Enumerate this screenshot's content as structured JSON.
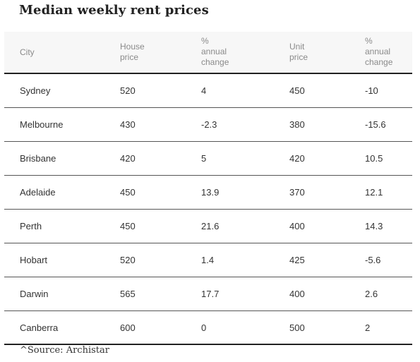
{
  "title": "Median weekly rent prices",
  "source": "^Source: Archistar",
  "headers": {
    "city": [
      "City"
    ],
    "house_price": [
      "House",
      "price"
    ],
    "house_change": [
      "%",
      "annual",
      "change"
    ],
    "unit_price": [
      "Unit",
      "price"
    ],
    "unit_change": [
      "%",
      "annual",
      "change"
    ]
  },
  "chart_data": {
    "type": "table",
    "title": "Median weekly rent prices",
    "columns": [
      "City",
      "House price",
      "% annual change",
      "Unit price",
      "% annual change"
    ],
    "rows": [
      [
        "Sydney",
        "520",
        "4",
        "450",
        "-10"
      ],
      [
        "Melbourne",
        "430",
        "-2.3",
        "380",
        "-15.6"
      ],
      [
        "Brisbane",
        "420",
        "5",
        "420",
        "10.5"
      ],
      [
        "Adelaide",
        "450",
        "13.9",
        "370",
        "12.1"
      ],
      [
        "Perth",
        "450",
        "21.6",
        "400",
        "14.3"
      ],
      [
        "Hobart",
        "520",
        "1.4",
        "425",
        "-5.6"
      ],
      [
        "Darwin",
        "565",
        "17.7",
        "400",
        "2.6"
      ],
      [
        "Canberra",
        "600",
        "0",
        "500",
        "2"
      ]
    ]
  }
}
